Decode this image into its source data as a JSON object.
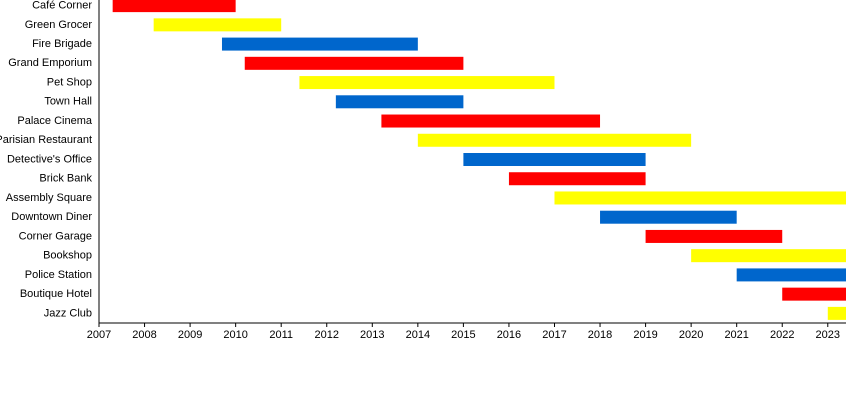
{
  "chart_data": {
    "type": "gantt",
    "categories": [
      "Café Corner",
      "Green Grocer",
      "Fire Brigade",
      "Grand Emporium",
      "Pet Shop",
      "Town Hall",
      "Palace Cinema",
      "Parisian Restaurant",
      "Detective's Office",
      "Brick Bank",
      "Assembly Square",
      "Downtown Diner",
      "Corner Garage",
      "Bookshop",
      "Police Station",
      "Boutique Hotel",
      "Jazz Club"
    ],
    "start": [
      2007.3,
      2008.2,
      2009.7,
      2010.2,
      2011.4,
      2012.2,
      2013.2,
      2014.0,
      2015.0,
      2016.0,
      2017.0,
      2018.0,
      2019.0,
      2020.0,
      2021.0,
      2022.0,
      2023.0
    ],
    "end": [
      2010.0,
      2011.0,
      2014.0,
      2015.0,
      2017.0,
      2015.0,
      2018.0,
      2020.0,
      2019.0,
      2019.0,
      2023.4,
      2021.0,
      2022.0,
      2023.4,
      2023.4,
      2023.4,
      2023.4
    ],
    "colors": [
      "#ff0000",
      "#ffff00",
      "#0066cc",
      "#ff0000",
      "#ffff00",
      "#0066cc",
      "#ff0000",
      "#ffff00",
      "#0066cc",
      "#ff0000",
      "#ffff00",
      "#0066cc",
      "#ff0000",
      "#ffff00",
      "#0066cc",
      "#ff0000",
      "#ffff00"
    ],
    "xlim": [
      2007,
      2023.4
    ],
    "xticks": [
      2007,
      2008,
      2009,
      2010,
      2011,
      2012,
      2013,
      2014,
      2015,
      2016,
      2017,
      2018,
      2019,
      2020,
      2021,
      2022,
      2023
    ]
  }
}
